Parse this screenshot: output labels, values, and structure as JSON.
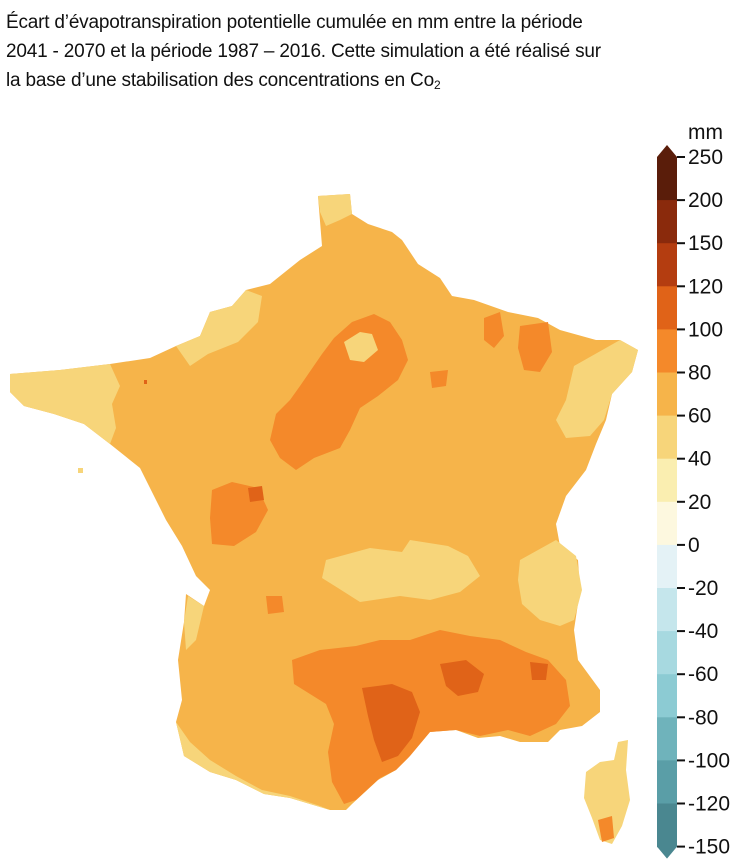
{
  "title": {
    "line1": "Écart d’évapotranspiration potentielle cumulée en mm entre la période",
    "line2": "2041 - 2070 et la période 1987 – 2016. Cette simulation a été réalisé sur",
    "line3_main": "la base d’une stabilisation des concentrations en Co",
    "line3_sub": "2"
  },
  "legend": {
    "unit": "mm",
    "ticks": [
      "250",
      "200",
      "150",
      "120",
      "100",
      "80",
      "60",
      "40",
      "20",
      "0",
      "-20",
      "-40",
      "-60",
      "-80",
      "-100",
      "-120",
      "-150"
    ],
    "colors": [
      "#5a1d0a",
      "#8a2a0c",
      "#b43d10",
      "#e06318",
      "#f4892a",
      "#f6b44a",
      "#f7d57a",
      "#faeeb0",
      "#fdf8df",
      "#e4f2f6",
      "#c5e6ec",
      "#a7d9e0",
      "#8ccbd3",
      "#6fb3bb",
      "#5a9ea7",
      "#4a8790"
    ]
  },
  "colors": {
    "class_60_80": "#f6b44a",
    "class_40_60": "#f7d57a",
    "class_80_100": "#f4892a",
    "class_100_120": "#e06318",
    "sea": "#ffffff"
  }
}
